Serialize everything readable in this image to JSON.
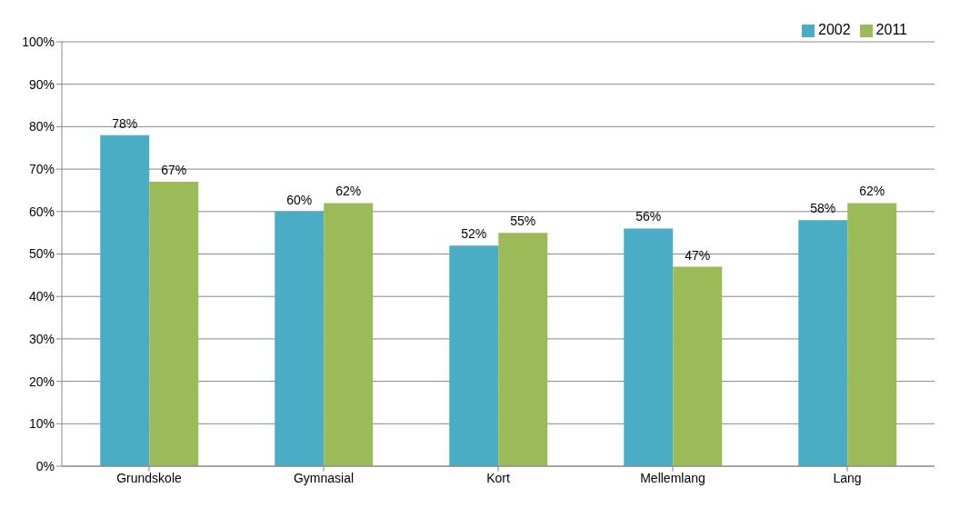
{
  "chart_data": {
    "type": "bar",
    "categories": [
      "Grundskole",
      "Gymnasial",
      "Kort",
      "Mellemlang",
      "Lang"
    ],
    "series": [
      {
        "name": "2002",
        "color": "#4bacc6",
        "values": [
          78,
          60,
          52,
          56,
          58
        ],
        "value_labels": [
          "78%",
          "60%",
          "52%",
          "56%",
          "58%"
        ]
      },
      {
        "name": "2011",
        "color": "#9bbb59",
        "values": [
          67,
          62,
          55,
          47,
          62
        ],
        "value_labels": [
          "67%",
          "62%",
          "55%",
          "47%",
          "62%"
        ]
      }
    ],
    "ylim": [
      0,
      100
    ],
    "yticks": [
      {
        "value": 0,
        "label": "0%"
      },
      {
        "value": 10,
        "label": "10%"
      },
      {
        "value": 20,
        "label": "20%"
      },
      {
        "value": 30,
        "label": "30%"
      },
      {
        "value": 40,
        "label": "40%"
      },
      {
        "value": 50,
        "label": "50%"
      },
      {
        "value": 60,
        "label": "60%"
      },
      {
        "value": 70,
        "label": "70%"
      },
      {
        "value": 80,
        "label": "80%"
      },
      {
        "value": 90,
        "label": "90%"
      },
      {
        "value": 100,
        "label": "100%"
      }
    ],
    "grid": "y",
    "legend": "top right"
  }
}
